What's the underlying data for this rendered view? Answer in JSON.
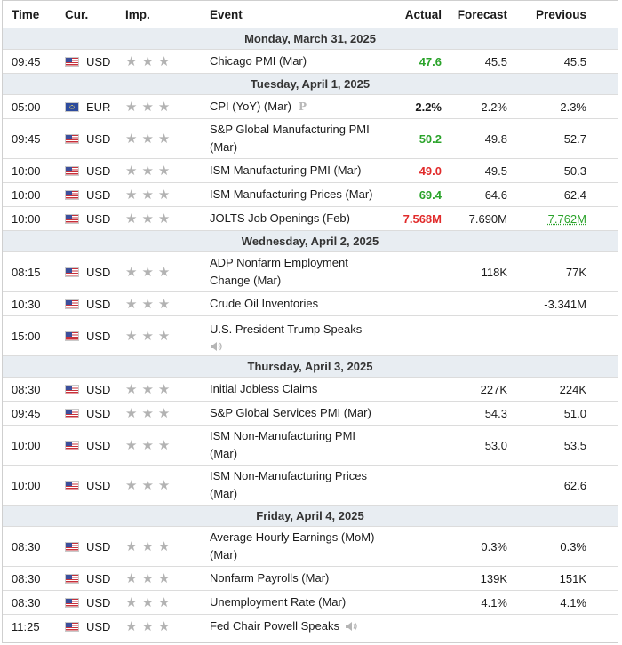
{
  "header": {
    "time": "Time",
    "currency": "Cur.",
    "importance": "Imp.",
    "event": "Event",
    "actual": "Actual",
    "forecast": "Forecast",
    "previous": "Previous"
  },
  "colors": {
    "actual_better": "#2aa32a",
    "actual_worse": "#e12b2b",
    "day_header_bg": "#e8edf2",
    "star_inactive": "#b3b3b3"
  },
  "importance_stars": "★★★",
  "icons": {
    "us_flag": "us-flag-icon",
    "eu_flag": "eu-flag-icon",
    "preliminary": "preliminary-icon",
    "speech": "speaker-icon"
  },
  "days": {
    "mon": "Monday, March 31, 2025",
    "tue": "Tuesday, April 1, 2025",
    "wed": "Wednesday, April 2, 2025",
    "thu": "Thursday, April 3, 2025",
    "fri": "Friday, April 4, 2025"
  },
  "events": {
    "e1": {
      "time": "09:45",
      "currency": "USD",
      "name": "Chicago PMI (Mar)",
      "actual": "47.6",
      "forecast": "45.5",
      "previous": "45.5"
    },
    "e2": {
      "time": "05:00",
      "currency": "EUR",
      "name": "CPI (YoY) (Mar)",
      "preliminary_mark": "P",
      "actual": "2.2%",
      "forecast": "2.2%",
      "previous": "2.3%"
    },
    "e3": {
      "time": "09:45",
      "currency": "USD",
      "name_line1": "S&P Global Manufacturing PMI",
      "name_line2": "(Mar)",
      "actual": "50.2",
      "forecast": "49.8",
      "previous": "52.7"
    },
    "e4": {
      "time": "10:00",
      "currency": "USD",
      "name": "ISM Manufacturing PMI (Mar)",
      "actual": "49.0",
      "forecast": "49.5",
      "previous": "50.3"
    },
    "e5": {
      "time": "10:00",
      "currency": "USD",
      "name": "ISM Manufacturing Prices (Mar)",
      "actual": "69.4",
      "forecast": "64.6",
      "previous": "62.4"
    },
    "e6": {
      "time": "10:00",
      "currency": "USD",
      "name": "JOLTS Job Openings (Feb)",
      "actual": "7.568M",
      "forecast": "7.690M",
      "previous": "7.762M"
    },
    "e7": {
      "time": "08:15",
      "currency": "USD",
      "name_line1": "ADP Nonfarm Employment",
      "name_line2": "Change (Mar)",
      "actual": "",
      "forecast": "118K",
      "previous": "77K"
    },
    "e8": {
      "time": "10:30",
      "currency": "USD",
      "name": "Crude Oil Inventories",
      "actual": "",
      "forecast": "",
      "previous": "-3.341M"
    },
    "e9": {
      "time": "15:00",
      "currency": "USD",
      "name": "U.S. President Trump Speaks",
      "actual": "",
      "forecast": "",
      "previous": ""
    },
    "e10": {
      "time": "08:30",
      "currency": "USD",
      "name": "Initial Jobless Claims",
      "actual": "",
      "forecast": "227K",
      "previous": "224K"
    },
    "e11": {
      "time": "09:45",
      "currency": "USD",
      "name": "S&P Global Services PMI (Mar)",
      "actual": "",
      "forecast": "54.3",
      "previous": "51.0"
    },
    "e12": {
      "time": "10:00",
      "currency": "USD",
      "name_line1": "ISM Non-Manufacturing PMI",
      "name_line2": "(Mar)",
      "actual": "",
      "forecast": "53.0",
      "previous": "53.5"
    },
    "e13": {
      "time": "10:00",
      "currency": "USD",
      "name_line1": "ISM Non-Manufacturing Prices",
      "name_line2": "(Mar)",
      "actual": "",
      "forecast": "",
      "previous": "62.6"
    },
    "e14": {
      "time": "08:30",
      "currency": "USD",
      "name_line1": "Average Hourly Earnings (MoM)",
      "name_line2": "(Mar)",
      "actual": "",
      "forecast": "0.3%",
      "previous": "0.3%"
    },
    "e15": {
      "time": "08:30",
      "currency": "USD",
      "name": "Nonfarm Payrolls (Mar)",
      "actual": "",
      "forecast": "139K",
      "previous": "151K"
    },
    "e16": {
      "time": "08:30",
      "currency": "USD",
      "name": "Unemployment Rate (Mar)",
      "actual": "",
      "forecast": "4.1%",
      "previous": "4.1%"
    },
    "e17": {
      "time": "11:25",
      "currency": "USD",
      "name": "Fed Chair Powell Speaks",
      "actual": "",
      "forecast": "",
      "previous": ""
    }
  }
}
